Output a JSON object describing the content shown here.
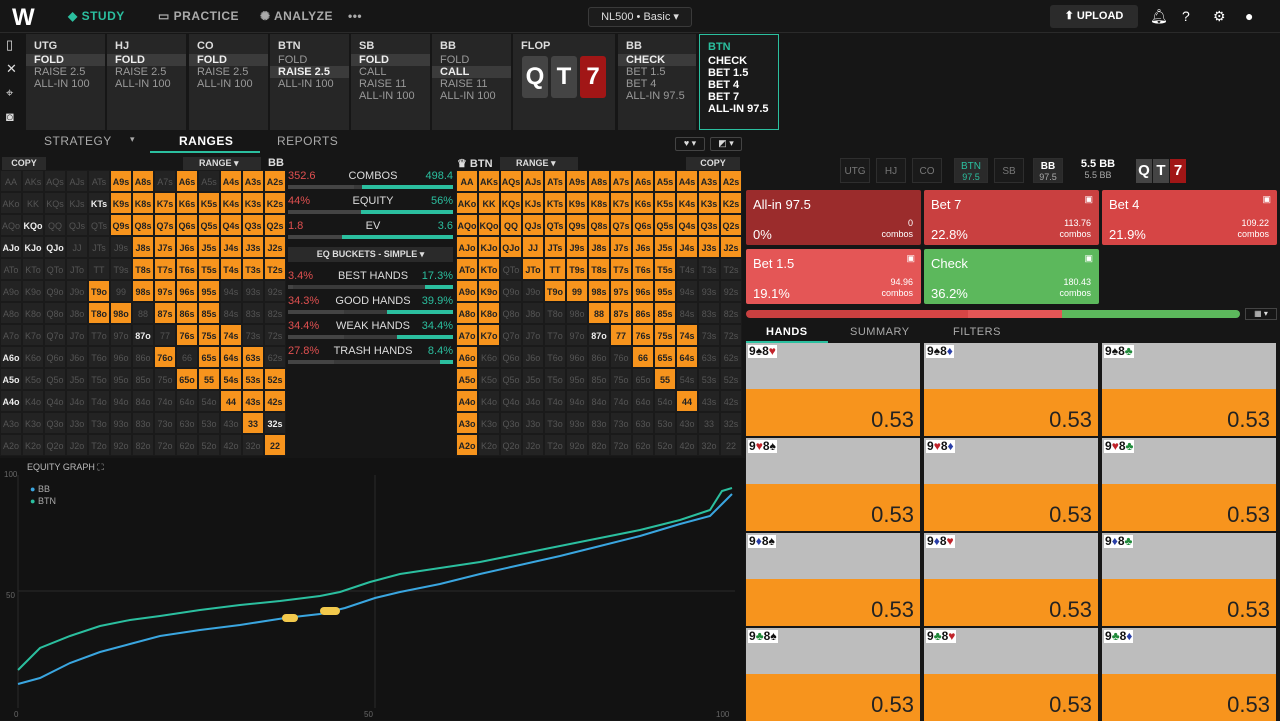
{
  "topbar": {
    "logo": "W",
    "study": "STUDY",
    "practice": "PRACTICE",
    "analyze": "ANALYZE",
    "more": "•••",
    "game": "NL500 • Basic",
    "upload": "UPLOAD"
  },
  "actions": [
    {
      "pos": "UTG",
      "rows": [
        "FOLD",
        "RAISE 2.5",
        "ALL-IN 100"
      ],
      "sel": 0
    },
    {
      "pos": "HJ",
      "rows": [
        "FOLD",
        "RAISE 2.5",
        "ALL-IN 100"
      ],
      "sel": 0
    },
    {
      "pos": "CO",
      "rows": [
        "FOLD",
        "RAISE 2.5",
        "ALL-IN 100"
      ],
      "sel": 0
    },
    {
      "pos": "BTN",
      "rows": [
        "FOLD",
        "RAISE 2.5",
        "ALL-IN 100"
      ],
      "sel": 1
    },
    {
      "pos": "SB",
      "rows": [
        "FOLD",
        "CALL",
        "RAISE 11",
        "ALL-IN 100"
      ],
      "sel": 0
    },
    {
      "pos": "BB",
      "rows": [
        "FOLD",
        "CALL",
        "RAISE 11",
        "ALL-IN 100"
      ],
      "sel": 1
    },
    {
      "pos": "BB",
      "rows": [
        "CHECK",
        "BET 1.5",
        "BET 4",
        "ALL-IN 97.5"
      ],
      "sel": 0
    }
  ],
  "flop": {
    "label": "FLOP",
    "cards": [
      "Q",
      "T",
      "7"
    ]
  },
  "btn_panel": {
    "pos": "BTN",
    "rows": [
      "CHECK",
      "BET 1.5",
      "BET 4",
      "BET 7",
      "ALL-IN 97.5"
    ]
  },
  "tabs": {
    "strategy": "STRATEGY",
    "ranges": "RANGES",
    "reports": "REPORTS"
  },
  "left_range": {
    "copy": "COPY",
    "range": "RANGE",
    "player": "BB"
  },
  "right_range": {
    "copy": "COPY",
    "range": "RANGE",
    "player": "BTN"
  },
  "stats": {
    "combos": {
      "label": "COMBOS",
      "l": "352.6",
      "r": "498.4"
    },
    "equity": {
      "label": "EQUITY",
      "l": "44%",
      "r": "56%"
    },
    "ev": {
      "label": "EV",
      "l": "1.8",
      "r": "3.6"
    },
    "buckets": "EQ BUCKETS - SIMPLE",
    "best": {
      "label": "BEST HANDS",
      "l": "3.4%",
      "r": "17.3%"
    },
    "good": {
      "label": "GOOD HANDS",
      "l": "34.3%",
      "r": "39.9%"
    },
    "weak": {
      "label": "WEAK HANDS",
      "l": "34.4%",
      "r": "34.4%"
    },
    "trash": {
      "label": "TRASH HANDS",
      "l": "27.8%",
      "r": "8.4%"
    }
  },
  "equity_graph": {
    "title": "EQUITY GRAPH",
    "legend_bb": "BB",
    "legend_btn": "BTN",
    "y_100": "100",
    "y_50": "50",
    "x_0": "0",
    "x_50": "50",
    "x_100": "100"
  },
  "positions": {
    "utg": "UTG",
    "hj": "HJ",
    "co": "CO",
    "btn": "BTN",
    "btn_stack": "97.5",
    "sb": "SB",
    "bb": "BB",
    "bb_stack": "97.5",
    "pot": "5.5 BB",
    "pot_sub": "5.5 BB",
    "board": [
      "Q",
      "T",
      "7"
    ]
  },
  "strategies": [
    {
      "name": "All-in 97.5",
      "pct": "0%",
      "combos": "0",
      "unit": "combos"
    },
    {
      "name": "Bet 7",
      "pct": "22.8%",
      "combos": "113.76",
      "unit": "combos"
    },
    {
      "name": "Bet 4",
      "pct": "21.9%",
      "combos": "109.22",
      "unit": "combos"
    },
    {
      "name": "Bet 1.5",
      "pct": "19.1%",
      "combos": "94.96",
      "unit": "combos"
    },
    {
      "name": "Check",
      "pct": "36.2%",
      "combos": "180.43",
      "unit": "combos"
    }
  ],
  "hand_tabs": {
    "hands": "HANDS",
    "summary": "SUMMARY",
    "filters": "FILTERS"
  },
  "hands": [
    {
      "a": "9",
      "as": "♠",
      "b": "8",
      "bs": "♥",
      "v": "0.53"
    },
    {
      "a": "9",
      "as": "♠",
      "b": "8",
      "bs": "♦",
      "v": "0.53"
    },
    {
      "a": "9",
      "as": "♠",
      "b": "8",
      "bs": "♣",
      "v": "0.53"
    },
    {
      "a": "9",
      "as": "♥",
      "b": "8",
      "bs": "♠",
      "v": "0.53"
    },
    {
      "a": "9",
      "as": "♥",
      "b": "8",
      "bs": "♦",
      "v": "0.53"
    },
    {
      "a": "9",
      "as": "♥",
      "b": "8",
      "bs": "♣",
      "v": "0.53"
    },
    {
      "a": "9",
      "as": "♦",
      "b": "8",
      "bs": "♠",
      "v": "0.53"
    },
    {
      "a": "9",
      "as": "♦",
      "b": "8",
      "bs": "♥",
      "v": "0.53"
    },
    {
      "a": "9",
      "as": "♦",
      "b": "8",
      "bs": "♣",
      "v": "0.53"
    },
    {
      "a": "9",
      "as": "♣",
      "b": "8",
      "bs": "♠",
      "v": "0.53"
    },
    {
      "a": "9",
      "as": "♣",
      "b": "8",
      "bs": "♥",
      "v": "0.53"
    },
    {
      "a": "9",
      "as": "♣",
      "b": "8",
      "bs": "♦",
      "v": "0.53"
    }
  ],
  "colors": {
    "accent": "#2bbf9f",
    "orange": "#f7941d",
    "allin": "#9b2c2c",
    "bet_red": "#d64545",
    "bet_light": "#e45656",
    "check": "#5cb85c"
  }
}
